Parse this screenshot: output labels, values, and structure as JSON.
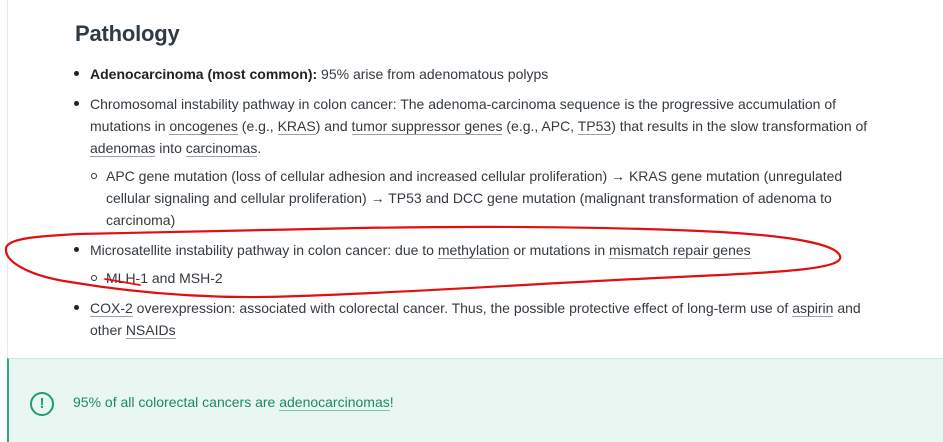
{
  "section": {
    "title": "Pathology"
  },
  "items": [
    {
      "bold": "Adenocarcinoma",
      "plain": " (most common):",
      "rest": " 95% arise from adenomatous polyps"
    },
    {
      "t1": "Chromosomal instability pathway in colon cancer: The adenoma-carcinoma sequence is the progressive accumulation of mutations in ",
      "l1": "oncogenes",
      "t2": " (e.g., ",
      "l2": "KRAS",
      "t3": ") and ",
      "l3": "tumor suppressor genes",
      "t4": " (e.g., APC, ",
      "l4": "TP53",
      "t5": ") that results in the slow transformation of ",
      "l5": "adenomas",
      "t6": " into ",
      "l6": "carcinomas",
      "t7": ".",
      "sub": "APC gene mutation (loss of cellular adhesion and increased cellular proliferation) → KRAS gene mutation (unregulated cellular signaling and cellular proliferation) → TP53 and DCC gene mutation (malignant transformation of adenoma to carcinoma)"
    },
    {
      "t1": "Microsatellite instability pathway in colon cancer: due to ",
      "l1": "methylation",
      "t2": " or mutations in ",
      "l2": "mismatch repair genes",
      "sub": "MLH-1 and MSH-2"
    },
    {
      "l1": "COX-2",
      "t1": " overexpression: associated with colorectal cancer. Thus, the possible protective effect of long-term use of ",
      "l2": "aspirin",
      "t2": " and other ",
      "l3": "NSAIDs"
    }
  ],
  "tip": {
    "icon": "exclamation-circle-icon",
    "text_before": "95% of all colorectal cancers are ",
    "link": "adenocarcinomas",
    "text_after": "!"
  },
  "colors": {
    "accent": "#2fa982",
    "annotation": "#e01010"
  }
}
